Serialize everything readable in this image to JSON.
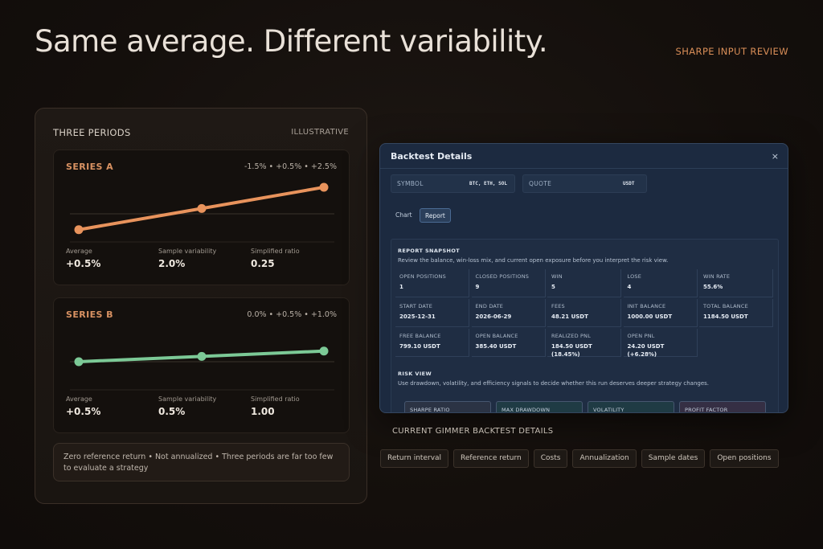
{
  "headline": "Same average. Different variability.",
  "top_tag": "SHARPE INPUT REVIEW",
  "left_panel": {
    "title": "THREE PERIODS",
    "tag": "ILLUSTRATIVE",
    "series": [
      {
        "name": "SERIES A",
        "values_text": "-1.5% • +0.5% • +2.5%",
        "values": [
          -1.5,
          0.5,
          2.5
        ],
        "color": "#e8935c",
        "stats": [
          {
            "label": "Average",
            "value": "+0.5%"
          },
          {
            "label": "Sample variability",
            "value": "2.0%"
          },
          {
            "label": "Simplified ratio",
            "value": "0.25"
          }
        ]
      },
      {
        "name": "SERIES B",
        "values_text": "0.0% • +0.5% • +1.0%",
        "values": [
          0.0,
          0.5,
          1.0
        ],
        "color": "#7cc996",
        "stats": [
          {
            "label": "Average",
            "value": "+0.5%"
          },
          {
            "label": "Sample variability",
            "value": "0.5%"
          },
          {
            "label": "Simplified ratio",
            "value": "1.00"
          }
        ]
      }
    ],
    "note": "Zero reference return • Not annualized • Three periods are far too few to evaluate a strategy"
  },
  "modal": {
    "title": "Backtest Details",
    "close": "×",
    "symbol_label": "SYMBOL",
    "symbol_value": "BTC, ETH, SOL",
    "quote_label": "QUOTE",
    "quote_value": "USDT",
    "tabs": [
      "Chart",
      "Report"
    ],
    "active_tab": "Report",
    "report_heading": "REPORT SNAPSHOT",
    "report_sub": "Review the balance, win-loss mix, and current open exposure before you interpret the risk view.",
    "cells": [
      {
        "label": "OPEN POSITIONS",
        "value": "1"
      },
      {
        "label": "CLOSED POSITIONS",
        "value": "9"
      },
      {
        "label": "WIN",
        "value": "5"
      },
      {
        "label": "LOSE",
        "value": "4"
      },
      {
        "label": "WIN RATE",
        "value": "55.6%"
      },
      {
        "label": "START DATE",
        "value": "2025-12-31"
      },
      {
        "label": "END DATE",
        "value": "2026-06-29"
      },
      {
        "label": "FEES",
        "value": "48.21 USDT"
      },
      {
        "label": "INIT BALANCE",
        "value": "1000.00 USDT"
      },
      {
        "label": "TOTAL BALANCE",
        "value": "1184.50 USDT"
      },
      {
        "label": "FREE BALANCE",
        "value": "799.10 USDT"
      },
      {
        "label": "OPEN BALANCE",
        "value": "385.40 USDT"
      },
      {
        "label": "REALIZED PNL",
        "value": "184.50 USDT",
        "value2": "(18.45%)"
      },
      {
        "label": "OPEN PNL",
        "value": "24.20 USDT",
        "value2": "(+6.28%)"
      }
    ],
    "risk_heading": "RISK VIEW",
    "risk_sub": "Use drawdown, volatility, and efficiency signals to decide whether this run deserves deeper strategy changes.",
    "risk_cards": [
      {
        "label": "SHARPE RATIO",
        "color": "#2b3344"
      },
      {
        "label": "MAX DRAWDOWN",
        "color": "#1f3b44"
      },
      {
        "label": "VOLATILITY",
        "color": "#1f3b44"
      },
      {
        "label": "PROFIT FACTOR",
        "color": "#352f44"
      }
    ]
  },
  "caption": "CURRENT GIMMER BACKTEST DETAILS",
  "chips": [
    "Return interval",
    "Reference return",
    "Costs",
    "Annualization",
    "Sample dates",
    "Open positions"
  ]
}
